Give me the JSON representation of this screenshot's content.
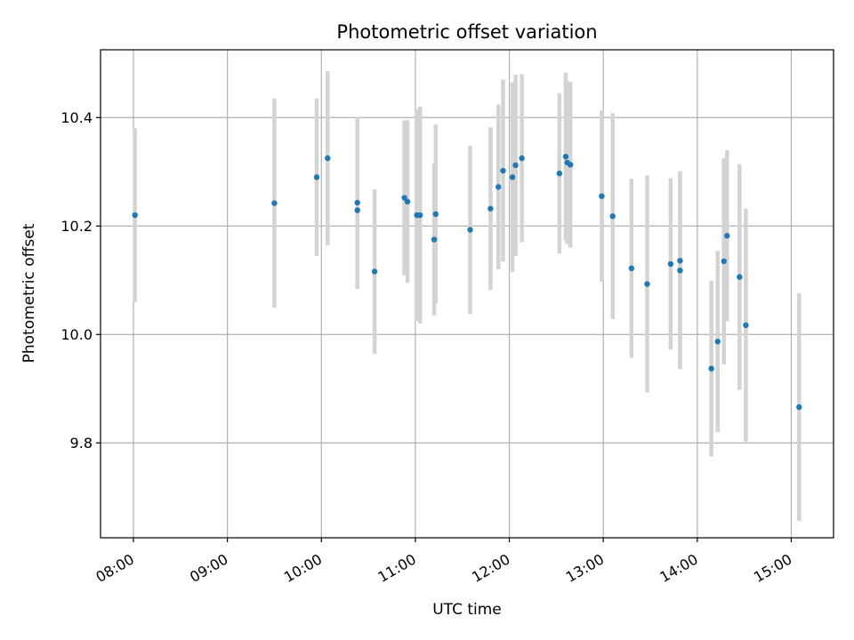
{
  "chart_data": {
    "type": "scatter",
    "title": "Photometric offset variation",
    "xlabel": "UTC time",
    "ylabel": "Photometric offset",
    "x_ticks": [
      "08:00",
      "09:00",
      "10:00",
      "11:00",
      "12:00",
      "13:00",
      "14:00",
      "15:00"
    ],
    "y_ticks": [
      "9.8",
      "10.0",
      "10.2",
      "10.4"
    ],
    "xlim": [
      "07:39",
      "15:27"
    ],
    "ylim": [
      9.625,
      10.525
    ],
    "grid": true,
    "colors": {
      "points": "#1f77b4",
      "errorbars": "#d3d3d3",
      "grid": "#b0b0b0"
    },
    "points": [
      {
        "x": "08:01",
        "y": 10.22,
        "err": 0.16
      },
      {
        "x": "09:30",
        "y": 10.242,
        "err": 0.193
      },
      {
        "x": "09:57",
        "y": 10.29,
        "err": 0.145
      },
      {
        "x": "10:04",
        "y": 10.325,
        "err": 0.16
      },
      {
        "x": "10:23",
        "y": 10.243,
        "err": 0.158
      },
      {
        "x": "10:23",
        "y": 10.229,
        "err": 0.145
      },
      {
        "x": "10:34",
        "y": 10.116,
        "err": 0.152
      },
      {
        "x": "10:53",
        "y": 10.252,
        "err": 0.143
      },
      {
        "x": "10:55",
        "y": 10.245,
        "err": 0.15
      },
      {
        "x": "11:01",
        "y": 10.22,
        "err": 0.195
      },
      {
        "x": "11:03",
        "y": 10.22,
        "err": 0.2
      },
      {
        "x": "11:12",
        "y": 10.175,
        "err": 0.14
      },
      {
        "x": "11:13",
        "y": 10.222,
        "err": 0.165
      },
      {
        "x": "11:35",
        "y": 10.193,
        "err": 0.155
      },
      {
        "x": "11:48",
        "y": 10.232,
        "err": 0.15
      },
      {
        "x": "11:53",
        "y": 10.272,
        "err": 0.152
      },
      {
        "x": "11:56",
        "y": 10.302,
        "err": 0.168
      },
      {
        "x": "12:02",
        "y": 10.29,
        "err": 0.175
      },
      {
        "x": "12:04",
        "y": 10.312,
        "err": 0.167
      },
      {
        "x": "12:08",
        "y": 10.325,
        "err": 0.155
      },
      {
        "x": "12:32",
        "y": 10.297,
        "err": 0.148
      },
      {
        "x": "12:36",
        "y": 10.328,
        "err": 0.155
      },
      {
        "x": "12:37",
        "y": 10.317,
        "err": 0.15
      },
      {
        "x": "12:39",
        "y": 10.313,
        "err": 0.153
      },
      {
        "x": "12:59",
        "y": 10.255,
        "err": 0.158
      },
      {
        "x": "13:06",
        "y": 10.218,
        "err": 0.19
      },
      {
        "x": "13:18",
        "y": 10.122,
        "err": 0.165
      },
      {
        "x": "13:28",
        "y": 10.093,
        "err": 0.2
      },
      {
        "x": "13:43",
        "y": 10.13,
        "err": 0.158
      },
      {
        "x": "13:49",
        "y": 10.136,
        "err": 0.165
      },
      {
        "x": "13:49",
        "y": 10.118,
        "err": 0.182
      },
      {
        "x": "14:09",
        "y": 9.937,
        "err": 0.162
      },
      {
        "x": "14:13",
        "y": 9.987,
        "err": 0.167
      },
      {
        "x": "14:17",
        "y": 10.135,
        "err": 0.19
      },
      {
        "x": "14:19",
        "y": 10.182,
        "err": 0.158
      },
      {
        "x": "14:27",
        "y": 10.106,
        "err": 0.208
      },
      {
        "x": "14:31",
        "y": 10.017,
        "err": 0.215
      },
      {
        "x": "15:05",
        "y": 9.866,
        "err": 0.21
      }
    ]
  }
}
